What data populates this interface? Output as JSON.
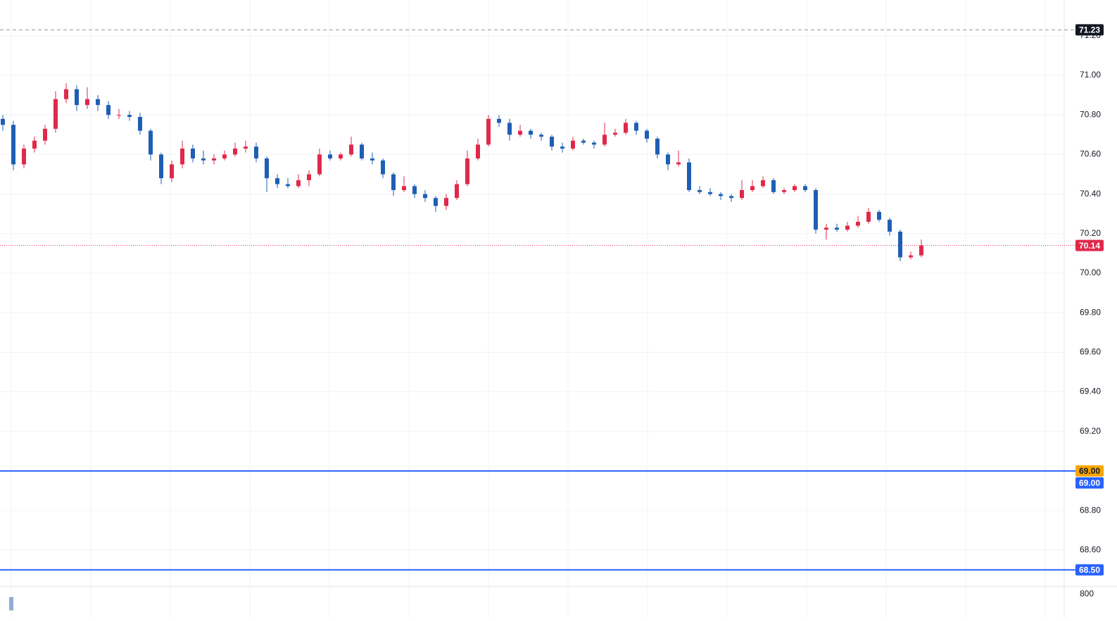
{
  "chart_data": {
    "type": "candlestick",
    "open": [
      70.78,
      70.75,
      70.55,
      70.63,
      70.67,
      70.73,
      70.88,
      70.93,
      70.85,
      70.88,
      70.85,
      70.8,
      70.8,
      70.79,
      70.72,
      70.6,
      70.48,
      70.55,
      70.63,
      70.58,
      70.57,
      70.58,
      70.6,
      70.63,
      70.64,
      70.58,
      70.48,
      70.45,
      70.44,
      70.47,
      70.5,
      70.6,
      70.58,
      70.6,
      70.65,
      70.58,
      70.57,
      70.5,
      70.42,
      70.44,
      70.4,
      70.38,
      70.34,
      70.38,
      70.45,
      70.58,
      70.65,
      70.78,
      70.76,
      70.7,
      70.72,
      70.7,
      70.69,
      70.64,
      70.63,
      70.67,
      70.66,
      70.65,
      70.7,
      70.71,
      70.76,
      70.72,
      70.68,
      70.6,
      70.55,
      70.56,
      70.42,
      70.41,
      70.4,
      70.39,
      70.38,
      70.42,
      70.44,
      70.47,
      70.41,
      70.42,
      70.44,
      70.42,
      70.22,
      70.23,
      70.22,
      70.24,
      70.26,
      70.31,
      70.27,
      70.21,
      70.08,
      70.09
    ],
    "high": [
      70.8,
      70.77,
      70.65,
      70.69,
      70.75,
      70.92,
      70.96,
      70.95,
      70.94,
      70.9,
      70.87,
      70.83,
      70.82,
      70.81,
      70.73,
      70.61,
      70.57,
      70.67,
      70.65,
      70.62,
      70.6,
      70.62,
      70.66,
      70.67,
      70.66,
      70.59,
      70.5,
      70.48,
      70.5,
      70.52,
      70.63,
      70.62,
      70.61,
      70.69,
      70.66,
      70.61,
      70.58,
      70.51,
      70.49,
      70.45,
      70.42,
      70.39,
      70.4,
      70.47,
      70.62,
      70.68,
      70.8,
      70.8,
      70.78,
      70.75,
      70.73,
      70.71,
      70.7,
      70.66,
      70.69,
      70.68,
      70.67,
      70.76,
      70.73,
      70.78,
      70.77,
      70.73,
      70.69,
      70.61,
      70.62,
      70.58,
      70.44,
      70.43,
      70.41,
      70.4,
      70.47,
      70.47,
      70.49,
      70.48,
      70.43,
      70.45,
      70.45,
      70.43,
      70.25,
      70.25,
      70.26,
      70.29,
      70.33,
      70.32,
      70.28,
      70.22,
      70.11,
      70.17
    ],
    "low": [
      70.72,
      70.52,
      70.53,
      70.61,
      70.65,
      70.71,
      70.86,
      70.82,
      70.83,
      70.82,
      70.78,
      70.78,
      70.77,
      70.7,
      70.57,
      70.45,
      70.46,
      70.53,
      70.56,
      70.55,
      70.55,
      70.57,
      70.59,
      70.61,
      70.56,
      70.41,
      70.43,
      70.43,
      70.43,
      70.44,
      70.49,
      70.57,
      70.57,
      70.59,
      70.57,
      70.55,
      70.48,
      70.39,
      70.41,
      70.38,
      70.36,
      70.31,
      70.32,
      70.37,
      70.44,
      70.57,
      70.64,
      70.74,
      70.67,
      70.69,
      70.68,
      70.67,
      70.62,
      70.61,
      70.62,
      70.65,
      70.63,
      70.64,
      70.69,
      70.7,
      70.7,
      70.66,
      70.58,
      70.52,
      70.54,
      70.41,
      70.4,
      70.39,
      70.37,
      70.36,
      70.37,
      70.41,
      70.43,
      70.4,
      70.4,
      70.41,
      70.41,
      70.2,
      70.17,
      70.21,
      70.21,
      70.23,
      70.25,
      70.26,
      70.19,
      70.06,
      70.07,
      70.08
    ],
    "close": [
      70.75,
      70.55,
      70.63,
      70.67,
      70.73,
      70.88,
      70.93,
      70.85,
      70.88,
      70.85,
      70.8,
      70.8,
      70.79,
      70.72,
      70.6,
      70.48,
      70.55,
      70.63,
      70.58,
      70.57,
      70.58,
      70.6,
      70.63,
      70.64,
      70.58,
      70.48,
      70.45,
      70.44,
      70.47,
      70.5,
      70.6,
      70.58,
      70.6,
      70.65,
      70.58,
      70.57,
      70.5,
      70.42,
      70.44,
      70.4,
      70.38,
      70.34,
      70.38,
      70.45,
      70.58,
      70.65,
      70.78,
      70.76,
      70.7,
      70.72,
      70.7,
      70.69,
      70.64,
      70.63,
      70.67,
      70.66,
      70.65,
      70.7,
      70.71,
      70.76,
      70.72,
      70.68,
      70.6,
      70.55,
      70.56,
      70.42,
      70.41,
      70.4,
      70.39,
      70.38,
      70.42,
      70.44,
      70.47,
      70.41,
      70.42,
      70.44,
      70.42,
      70.22,
      70.23,
      70.22,
      70.24,
      70.26,
      70.31,
      70.27,
      70.21,
      70.08,
      70.09,
      70.14
    ],
    "up_color": "#e0294a",
    "down_color": "#1e5fb4",
    "ylim": [
      68.416,
      71.381
    ],
    "yticks": [
      {
        "value": 68.6,
        "label": "68.60"
      },
      {
        "value": 68.8,
        "label": "68.80"
      },
      {
        "value": 69.0,
        "label": "69.00"
      },
      {
        "value": 69.2,
        "label": "69.20"
      },
      {
        "value": 69.4,
        "label": "69.40"
      },
      {
        "value": 69.6,
        "label": "69.60"
      },
      {
        "value": 69.8,
        "label": "69.80"
      },
      {
        "value": 70.0,
        "label": "70.00"
      },
      {
        "value": 70.2,
        "label": "70.20"
      },
      {
        "value": 70.4,
        "label": "70.40"
      },
      {
        "value": 70.6,
        "label": "70.60"
      },
      {
        "value": 70.8,
        "label": "70.80"
      },
      {
        "value": 71.0,
        "label": "71.00"
      },
      {
        "value": 71.2,
        "label": "71.20"
      }
    ],
    "grid": true,
    "lines": [
      {
        "value": 71.23,
        "label": "71.23",
        "color": "#9598a1",
        "badge": "#131722",
        "style": "dashed"
      },
      {
        "value": 70.14,
        "label": "70.14",
        "color": "#e0294a",
        "badge": "#e0294a",
        "style": "dotted"
      },
      {
        "value": 69,
        "label": "69.00",
        "color": "#2962ff",
        "badge": "#2962ff",
        "style": "solid"
      },
      {
        "value": 68.5,
        "label": "68.50",
        "color": "#2962ff",
        "badge": "#2962ff",
        "style": "solid"
      }
    ],
    "alert": {
      "value": 69,
      "label": "69.00",
      "color": "#f7a600"
    },
    "volume": {
      "values": [
        660
      ],
      "ylim": [
        0,
        1180
      ],
      "yticks": [
        800
      ],
      "color": "#90acd6"
    }
  }
}
